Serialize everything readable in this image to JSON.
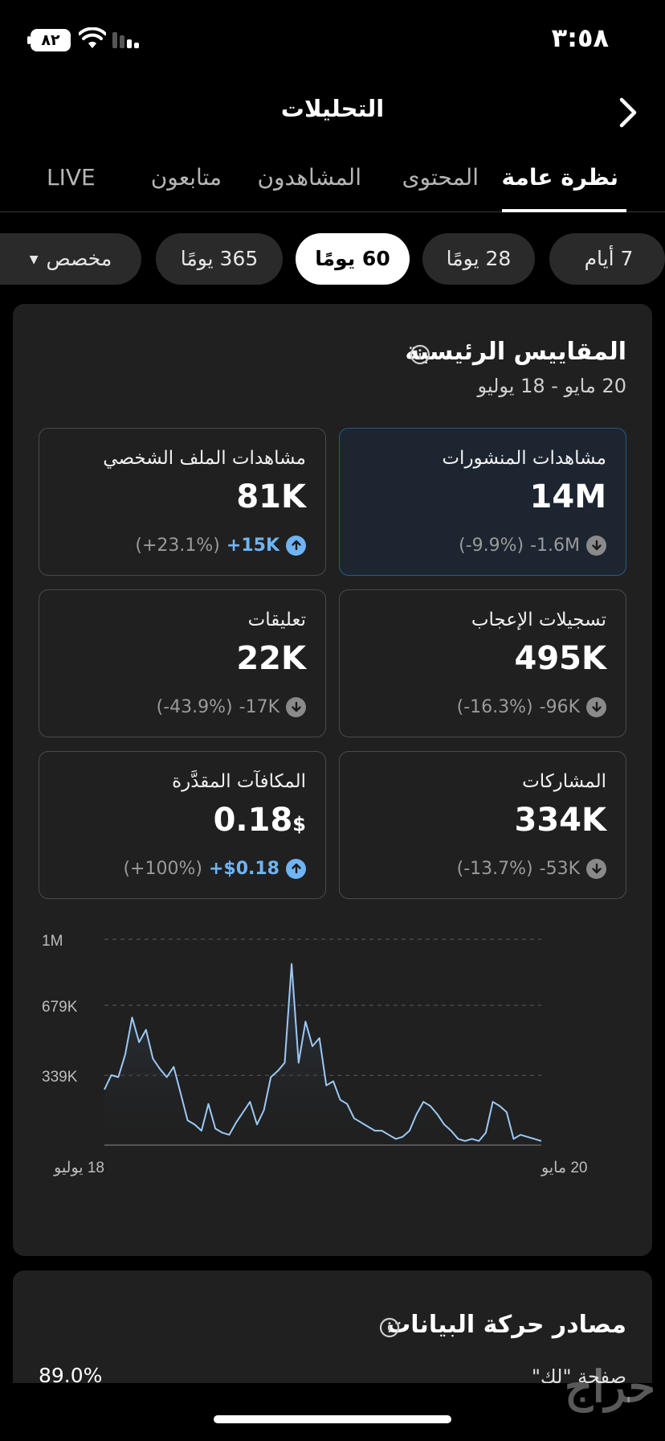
{
  "status_bar": {
    "time": "٣:٥٨",
    "battery": "٨٢"
  },
  "header": {
    "title": "التحليلات"
  },
  "tabs": [
    {
      "label": "نظرة عامة",
      "active": true
    },
    {
      "label": "المحتوى",
      "active": false
    },
    {
      "label": "المشاهدون",
      "active": false
    },
    {
      "label": "متابعون",
      "active": false
    },
    {
      "label": "LIVE",
      "active": false
    }
  ],
  "filters": [
    {
      "label": "7 أيام",
      "active": false
    },
    {
      "label": "28 يومًا",
      "active": false
    },
    {
      "label": "60 يومًا",
      "active": true
    },
    {
      "label": "365 يومًا",
      "active": false
    },
    {
      "label": "مخصص",
      "active": false
    }
  ],
  "key_metrics": {
    "title": "المقاييس الرئيسية",
    "date_range": "20 مايو - 18 يوليو",
    "tiles": [
      {
        "label": "مشاهدات المنشورات",
        "value": "14M",
        "unit": "",
        "delta": "-1.6M",
        "delta_pct": "(-9.9%)",
        "direction": "down",
        "selected": true
      },
      {
        "label": "مشاهدات الملف الشخصي",
        "value": "81K",
        "unit": "",
        "delta": "+15K",
        "delta_pct": "(+23.1%)",
        "direction": "up",
        "selected": false
      },
      {
        "label": "تسجيلات الإعجاب",
        "value": "495K",
        "unit": "",
        "delta": "-96K",
        "delta_pct": "(-16.3%)",
        "direction": "down",
        "selected": false
      },
      {
        "label": "تعليقات",
        "value": "22K",
        "unit": "",
        "delta": "-17K",
        "delta_pct": "(-43.9%)",
        "direction": "down",
        "selected": false
      },
      {
        "label": "المشاركات",
        "value": "334K",
        "unit": "",
        "delta": "-53K",
        "delta_pct": "(-13.7%)",
        "direction": "down",
        "selected": false
      },
      {
        "label": "المكافآت المقدَّرة",
        "value": "0.18",
        "unit": "$",
        "delta": "+$0.18",
        "delta_pct": "(+100%)",
        "direction": "up",
        "selected": false
      }
    ]
  },
  "chart_data": {
    "type": "area",
    "y_ticks": [
      "1M",
      "679K",
      "339K"
    ],
    "y_tick_values": [
      1000000,
      679000,
      339000
    ],
    "ylim": [
      0,
      1000000
    ],
    "x_labels": [
      "18 يوليو",
      "20 مايو"
    ],
    "x_direction": "rtl",
    "grid": true,
    "values": [
      270000,
      340000,
      330000,
      440000,
      620000,
      500000,
      560000,
      420000,
      370000,
      330000,
      380000,
      250000,
      120000,
      100000,
      70000,
      200000,
      80000,
      60000,
      50000,
      110000,
      160000,
      210000,
      100000,
      170000,
      330000,
      360000,
      400000,
      880000,
      400000,
      600000,
      480000,
      520000,
      290000,
      310000,
      220000,
      200000,
      130000,
      110000,
      90000,
      70000,
      70000,
      50000,
      30000,
      40000,
      70000,
      150000,
      210000,
      190000,
      150000,
      100000,
      70000,
      30000,
      20000,
      30000,
      20000,
      60000,
      210000,
      190000,
      160000,
      30000,
      50000,
      40000,
      30000,
      20000
    ]
  },
  "traffic": {
    "title": "مصادر حركة البيانات",
    "source_label": "صفحة \"لك\"",
    "source_value": "89.0%"
  },
  "watermark": "حراج"
}
